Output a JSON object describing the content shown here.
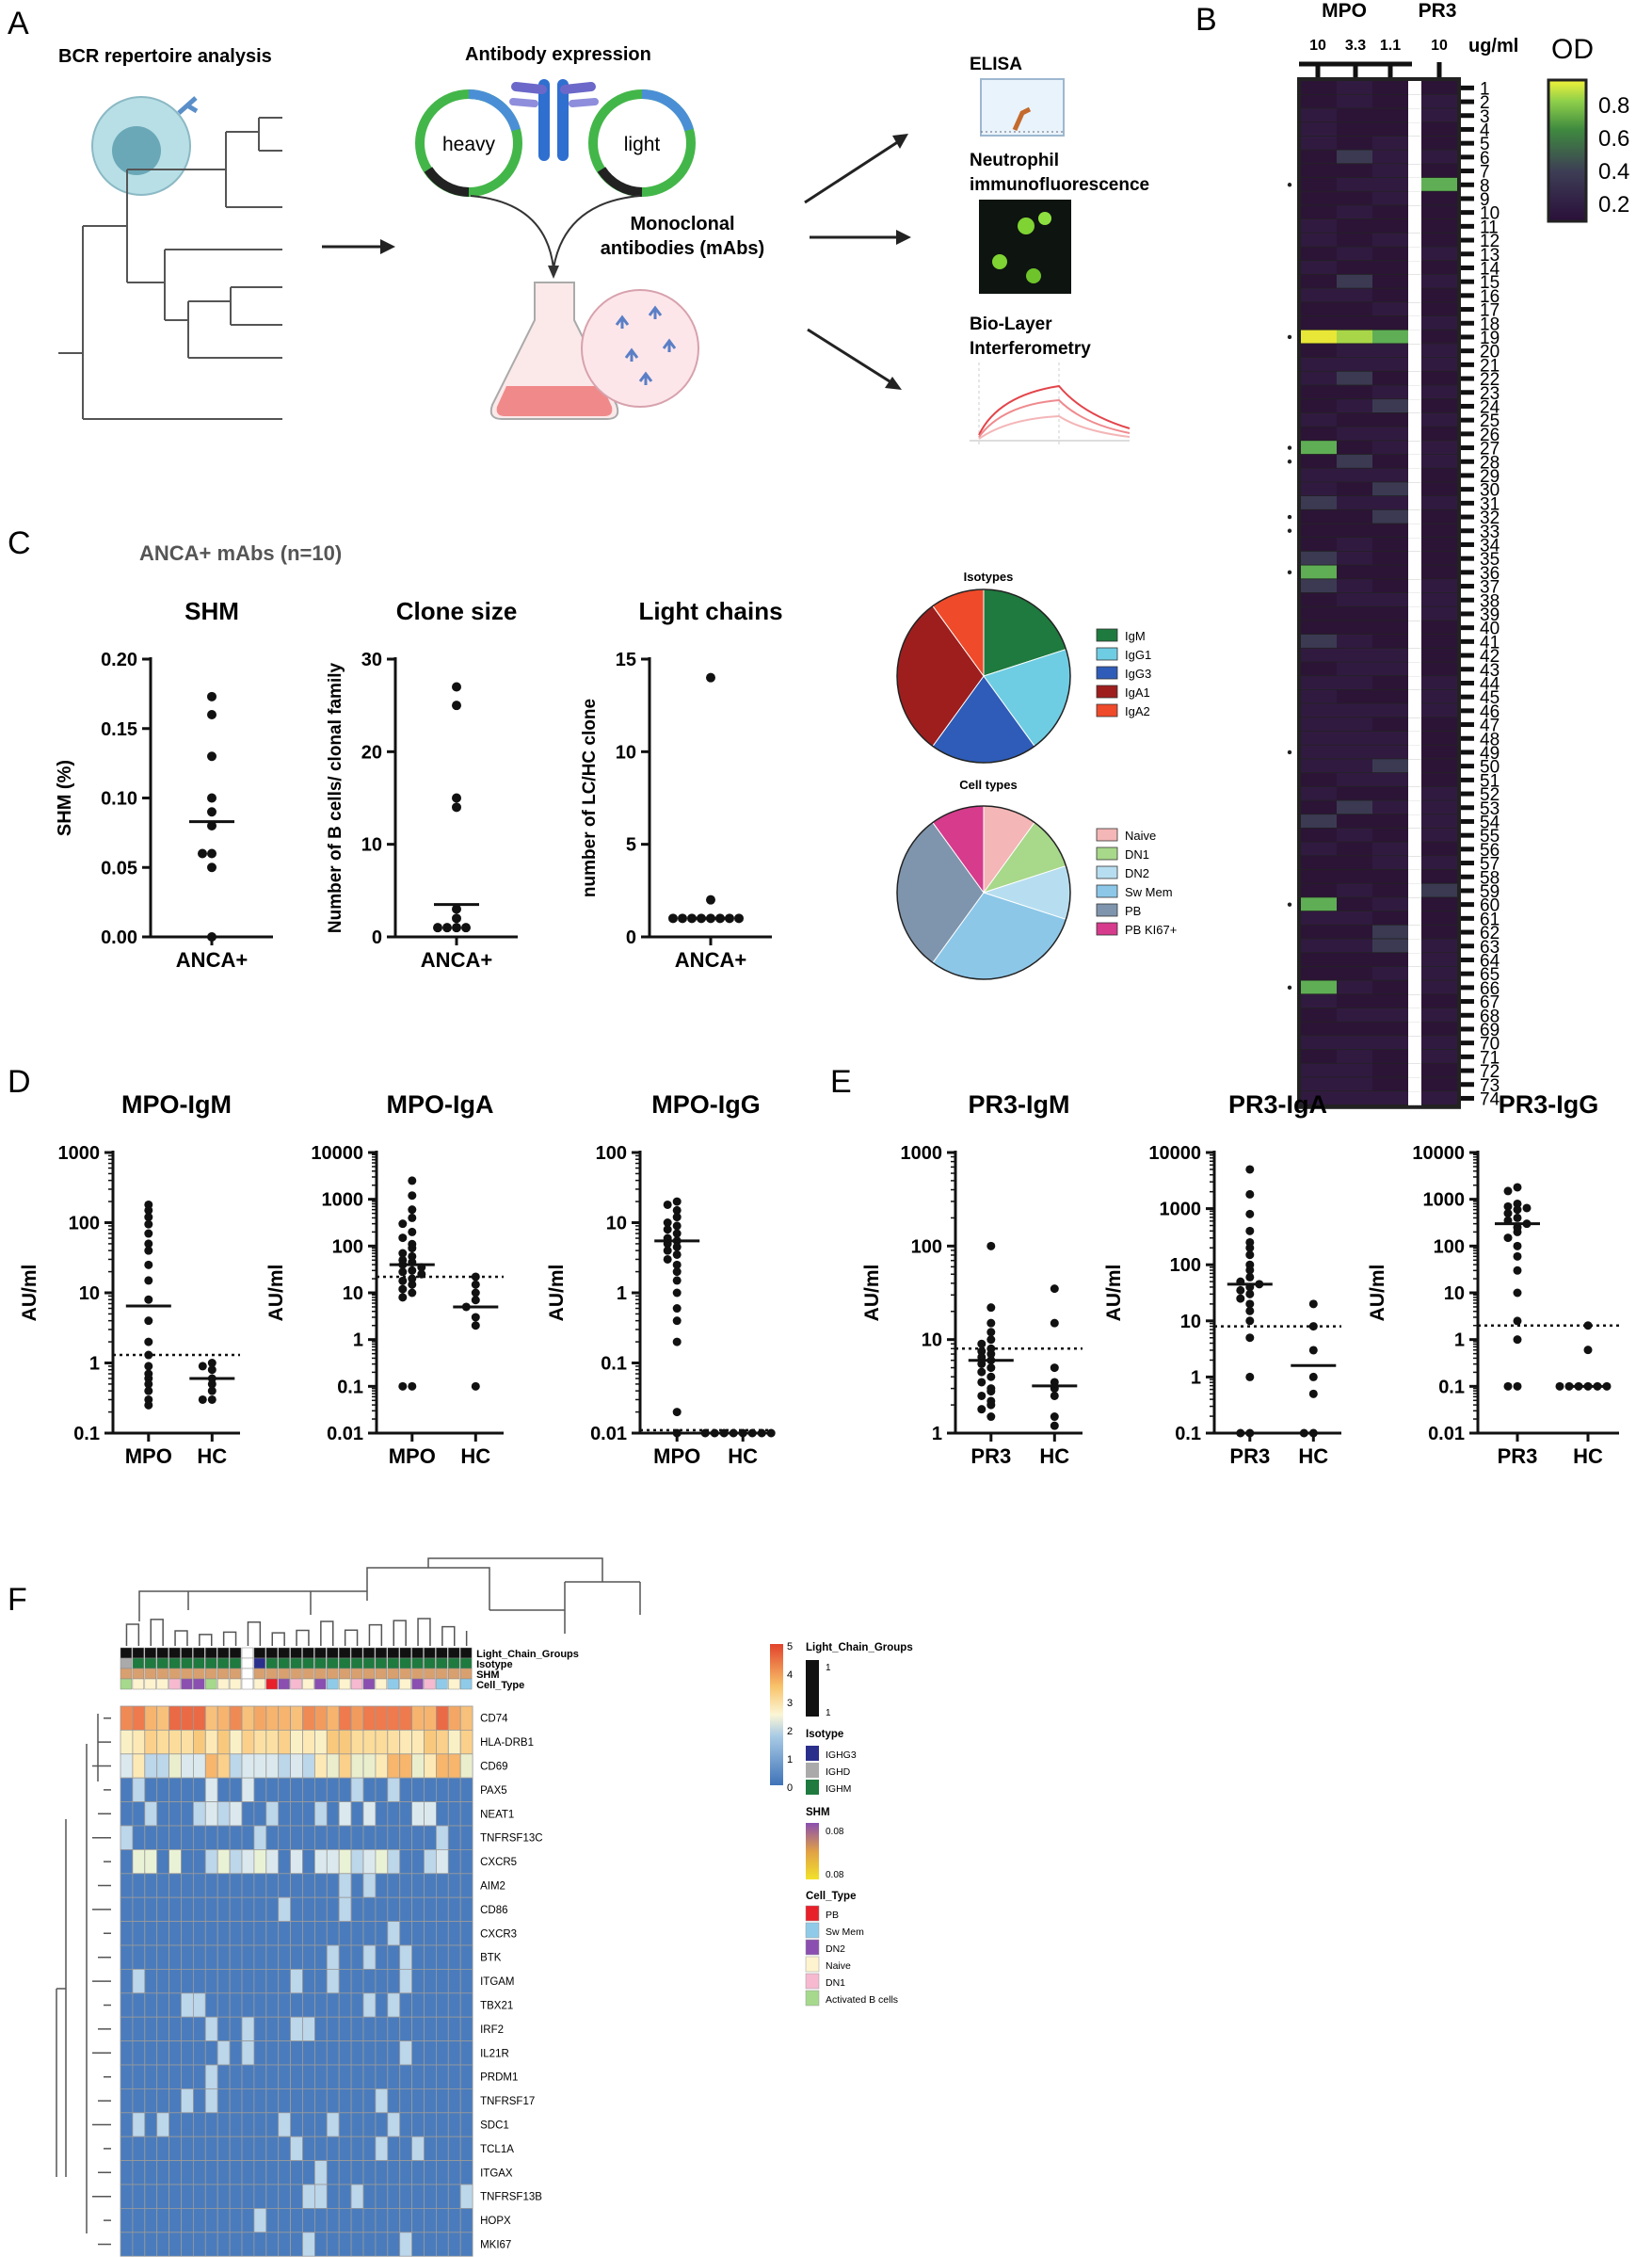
{
  "panel_letters": {
    "A": "A",
    "B": "B",
    "C": "C",
    "D": "D",
    "E": "E",
    "F": "F"
  },
  "panelA": {
    "bcr_title": "BCR repertoire analysis",
    "expr_title": "Antibody expression",
    "heavy": "heavy",
    "light": "light",
    "mabs_line1": "Monoclonal",
    "mabs_line2": "antibodies (mAbs)",
    "elisa": "ELISA",
    "neut_line1": "Neutrophil",
    "neut_line2": "immunofluorescence",
    "bli_line1": "Bio-Layer",
    "bli_line2": "Interferometry"
  },
  "panelB": {
    "group_mpo": "MPO",
    "group_pr3": "PR3",
    "conc_labels": [
      "10",
      "3.3",
      "1.1",
      "10"
    ],
    "unit": "ug/ml",
    "legend_title": "OD",
    "legend_ticks": [
      "0.8",
      "0.6",
      "0.4",
      "0.2"
    ],
    "row_labels": [
      "1",
      "2",
      "3",
      "4",
      "5",
      "6",
      "7",
      "8",
      "9",
      "10",
      "11",
      "12",
      "13",
      "14",
      "15",
      "16",
      "17",
      "18",
      "19",
      "20",
      "21",
      "22",
      "23",
      "24",
      "25",
      "26",
      "27",
      "28",
      "29",
      "30",
      "31",
      "32",
      "33",
      "34",
      "35",
      "36",
      "37",
      "38",
      "39",
      "40",
      "41",
      "42",
      "43",
      "44",
      "45",
      "46",
      "47",
      "48",
      "49",
      "50",
      "51",
      "52",
      "53",
      "54",
      "55",
      "56",
      "57",
      "58",
      "59",
      "60",
      "61",
      "62",
      "63",
      "64",
      "65",
      "66",
      "67",
      "68",
      "69",
      "70",
      "71",
      "72",
      "73",
      "74"
    ],
    "marked_rows": [
      8,
      19,
      27,
      28,
      32,
      33,
      36,
      49,
      60,
      66
    ],
    "highlights": [
      {
        "row": 8,
        "col": 4,
        "od": 0.5
      },
      {
        "row": 19,
        "col": 1,
        "od": 0.9
      },
      {
        "row": 19,
        "col": 2,
        "od": 0.7
      },
      {
        "row": 19,
        "col": 3,
        "od": 0.6
      },
      {
        "row": 27,
        "col": 1,
        "od": 0.5
      },
      {
        "row": 36,
        "col": 1,
        "od": 0.5
      },
      {
        "row": 60,
        "col": 1,
        "od": 0.5
      },
      {
        "row": 66,
        "col": 1,
        "od": 0.5
      }
    ]
  },
  "panelC": {
    "header": "ANCA+ mAbs (n=10)",
    "pie_isotypes_title": "Isotypes",
    "pie_celltypes_title": "Cell types",
    "isotype_legend": [
      {
        "label": "IgM",
        "color": "#1e7a3e"
      },
      {
        "label": "IgG1",
        "color": "#6ecde3"
      },
      {
        "label": "IgG3",
        "color": "#2e5cb8"
      },
      {
        "label": "IgA1",
        "color": "#9e1e1e"
      },
      {
        "label": "IgA2",
        "color": "#ef4a2a"
      }
    ],
    "celltype_legend": [
      {
        "label": "Naive",
        "color": "#f4b6b6"
      },
      {
        "label": "DN1",
        "color": "#a8d88a"
      },
      {
        "label": "DN2",
        "color": "#b7def0"
      },
      {
        "label": "Sw Mem",
        "color": "#8cc7e8"
      },
      {
        "label": "PB",
        "color": "#7f95ad"
      },
      {
        "label": "PB KI67+",
        "color": "#d63b8c"
      }
    ]
  },
  "panelF": {
    "annotation_rows": [
      "Light_Chain_Groups",
      "Isotype",
      "SHM",
      "Cell_Type"
    ],
    "genes": [
      "CD74",
      "HLA-DRB1",
      "CD69",
      "PAX5",
      "NEAT1",
      "TNFRSF13C",
      "CXCR5",
      "AIM2",
      "CD86",
      "CXCR3",
      "BTK",
      "ITGAM",
      "TBX21",
      "IRF2",
      "IL21R",
      "PRDM1",
      "TNFRSF17",
      "SDC1",
      "TCL1A",
      "ITGAX",
      "TNFRSF13B",
      "HOPX",
      "MKI67"
    ],
    "scale_ticks": [
      "5",
      "4",
      "3",
      "2",
      "1",
      "0"
    ],
    "legend_lc_title": "Light_Chain_Groups",
    "legend_lc_vals": [
      "1",
      "1"
    ],
    "legend_iso_title": "Isotype",
    "legend_iso": [
      {
        "label": "IGHG3",
        "color": "#2b2f8c"
      },
      {
        "label": "IGHD",
        "color": "#aaaaaa"
      },
      {
        "label": "IGHM",
        "color": "#1e7a3e"
      }
    ],
    "legend_shm_title": "SHM",
    "legend_shm_vals": [
      "0.08",
      "0.08"
    ],
    "legend_cell_title": "Cell_Type",
    "legend_cell": [
      {
        "label": "PB",
        "color": "#e8202a"
      },
      {
        "label": "Sw Mem",
        "color": "#8fcbe8"
      },
      {
        "label": "DN2",
        "color": "#8a4fb0"
      },
      {
        "label": "Naive",
        "color": "#fdf3cf"
      },
      {
        "label": "DN1",
        "color": "#f6b9cf"
      },
      {
        "label": "Activated B cells",
        "color": "#a6d98c"
      }
    ]
  },
  "chart_data": [
    {
      "type": "scatter",
      "title": "SHM",
      "ylabel": "SHM (%)",
      "categories": [
        "ANCA+"
      ],
      "ylim": [
        0,
        0.2
      ],
      "yticks": [
        "0.00",
        "0.05",
        "0.10",
        "0.15",
        "0.20"
      ],
      "points": [
        {
          "x": "ANCA+",
          "y": [
            0.0,
            0.05,
            0.06,
            0.06,
            0.08,
            0.09,
            0.1,
            0.13,
            0.16,
            0.173
          ]
        }
      ],
      "median": 0.083
    },
    {
      "type": "scatter",
      "title": "Clone size",
      "ylabel": "Number of B cells/ clonal family",
      "categories": [
        "ANCA+"
      ],
      "ylim": [
        0,
        30
      ],
      "yticks": [
        "0",
        "10",
        "20",
        "30"
      ],
      "points": [
        {
          "x": "ANCA+",
          "y": [
            1,
            1,
            1,
            1,
            2,
            3,
            14,
            15,
            25,
            27
          ]
        }
      ],
      "median": 3.5
    },
    {
      "type": "scatter",
      "title": "Light chains",
      "ylabel": "number of LC/HC clone",
      "categories": [
        "ANCA+"
      ],
      "ylim": [
        0,
        15
      ],
      "yticks": [
        "0",
        "5",
        "10",
        "15"
      ],
      "points": [
        {
          "x": "ANCA+",
          "y": [
            1,
            1,
            1,
            1,
            1,
            1,
            1,
            1,
            2,
            14
          ]
        }
      ],
      "median": 1
    },
    {
      "type": "pie",
      "title": "Isotypes",
      "labels": [
        "IgM",
        "IgG1",
        "IgG3",
        "IgA1",
        "IgA2"
      ],
      "values": [
        2,
        2,
        2,
        3,
        1
      ]
    },
    {
      "type": "pie",
      "title": "Cell types",
      "labels": [
        "Naive",
        "DN1",
        "DN2",
        "Sw Mem",
        "PB",
        "PB KI67+"
      ],
      "values": [
        1,
        1,
        1,
        3,
        3,
        1
      ]
    },
    {
      "type": "scatter",
      "title": "MPO-IgM",
      "ylabel": "AU/ml",
      "scale": "log",
      "ylim": [
        0.1,
        1000
      ],
      "yticks": [
        "0.1",
        "1",
        "10",
        "100",
        "1000"
      ],
      "categories": [
        "MPO",
        "HC"
      ],
      "points": [
        {
          "x": "MPO",
          "y": [
            180,
            150,
            120,
            95,
            70,
            50,
            40,
            25,
            15,
            8,
            4,
            2,
            1.3,
            0.9,
            0.7,
            0.6,
            0.5,
            0.4,
            0.3,
            0.25
          ]
        },
        {
          "x": "HC",
          "y": [
            1,
            0.9,
            0.8,
            0.6,
            0.5,
            0.4,
            0.3,
            0.3
          ]
        }
      ],
      "medians": [
        6.5,
        0.6
      ],
      "cutoff": 1.3
    },
    {
      "type": "scatter",
      "title": "MPO-IgA",
      "ylabel": "AU/ml",
      "scale": "log",
      "ylim": [
        0.01,
        10000
      ],
      "yticks": [
        "0.01",
        "0.1",
        "1",
        "10",
        "100",
        "1000",
        "10000"
      ],
      "categories": [
        "MPO",
        "HC"
      ],
      "points": [
        {
          "x": "MPO",
          "y": [
            2500,
            1200,
            600,
            400,
            300,
            200,
            150,
            110,
            90,
            70,
            60,
            50,
            45,
            40,
            35,
            30,
            28,
            25,
            20,
            18,
            15,
            12,
            10,
            8,
            0.1,
            0.1
          ]
        },
        {
          "x": "HC",
          "y": [
            22,
            15,
            10,
            7,
            5,
            3,
            2,
            0.1
          ]
        }
      ],
      "medians": [
        40,
        5
      ],
      "cutoff": 22
    },
    {
      "type": "scatter",
      "title": "MPO-IgG",
      "ylabel": "AU/ml",
      "scale": "log",
      "ylim": [
        0.01,
        100
      ],
      "yticks": [
        "0.01",
        "0.1",
        "1",
        "10",
        "100"
      ],
      "categories": [
        "MPO",
        "HC"
      ],
      "points": [
        {
          "x": "MPO",
          "y": [
            20,
            18,
            15,
            12,
            10,
            9,
            8,
            7,
            6,
            5.5,
            5,
            4.5,
            4,
            3.5,
            3,
            2.5,
            2,
            1.5,
            1,
            0.6,
            0.4,
            0.2,
            0.02,
            0.01
          ]
        },
        {
          "x": "HC",
          "y": [
            0.01,
            0.01,
            0.01,
            0.01,
            0.01,
            0.01,
            0.01,
            0.01
          ]
        }
      ],
      "medians": [
        5.5,
        0.01
      ],
      "cutoff": 0.011
    },
    {
      "type": "scatter",
      "title": "PR3-IgM",
      "ylabel": "AU/ml",
      "scale": "log",
      "ylim": [
        1,
        1000
      ],
      "yticks": [
        "1",
        "10",
        "100",
        "1000"
      ],
      "categories": [
        "PR3",
        "HC"
      ],
      "points": [
        {
          "x": "PR3",
          "y": [
            100,
            22,
            15,
            12,
            10,
            9,
            8,
            7.5,
            7,
            6.5,
            6,
            5.5,
            5,
            4.5,
            4,
            3.5,
            3,
            2.8,
            2.5,
            2.2,
            2,
            1.8,
            1.5
          ]
        },
        {
          "x": "HC",
          "y": [
            35,
            15,
            5,
            3.5,
            3,
            2.5,
            1.5,
            1.2
          ]
        }
      ],
      "medians": [
        6,
        3.2
      ],
      "cutoff": 8
    },
    {
      "type": "scatter",
      "title": "PR3-IgA",
      "ylabel": "AU/ml",
      "scale": "log",
      "ylim": [
        0.1,
        10000
      ],
      "yticks": [
        "0.1",
        "1",
        "10",
        "100",
        "1000",
        "10000"
      ],
      "categories": [
        "PR3",
        "HC"
      ],
      "points": [
        {
          "x": "PR3",
          "y": [
            5000,
            1800,
            800,
            400,
            250,
            200,
            150,
            100,
            80,
            60,
            50,
            45,
            40,
            35,
            30,
            25,
            20,
            15,
            10,
            5,
            1,
            0.1,
            0.1
          ]
        },
        {
          "x": "HC",
          "y": [
            20,
            8,
            3,
            1,
            0.5,
            0.1,
            0.1
          ]
        }
      ],
      "medians": [
        45,
        1.6
      ],
      "cutoff": 8
    },
    {
      "type": "scatter",
      "title": "PR3-IgG",
      "ylabel": "AU/ml",
      "scale": "log",
      "ylim": [
        0.01,
        10000
      ],
      "yticks": [
        "0.01",
        "0.1",
        "1",
        "10",
        "100",
        "1000",
        "10000"
      ],
      "categories": [
        "PR3",
        "HC"
      ],
      "points": [
        {
          "x": "PR3",
          "y": [
            1800,
            1500,
            800,
            700,
            650,
            600,
            500,
            400,
            350,
            300,
            250,
            200,
            150,
            100,
            60,
            30,
            10,
            2.5,
            1,
            0.1,
            0.1
          ]
        },
        {
          "x": "HC",
          "y": [
            2,
            0.6,
            0.1,
            0.1,
            0.1,
            0.1,
            0.1,
            0.1
          ]
        }
      ],
      "medians": [
        300,
        0.1
      ],
      "cutoff": 2
    }
  ]
}
